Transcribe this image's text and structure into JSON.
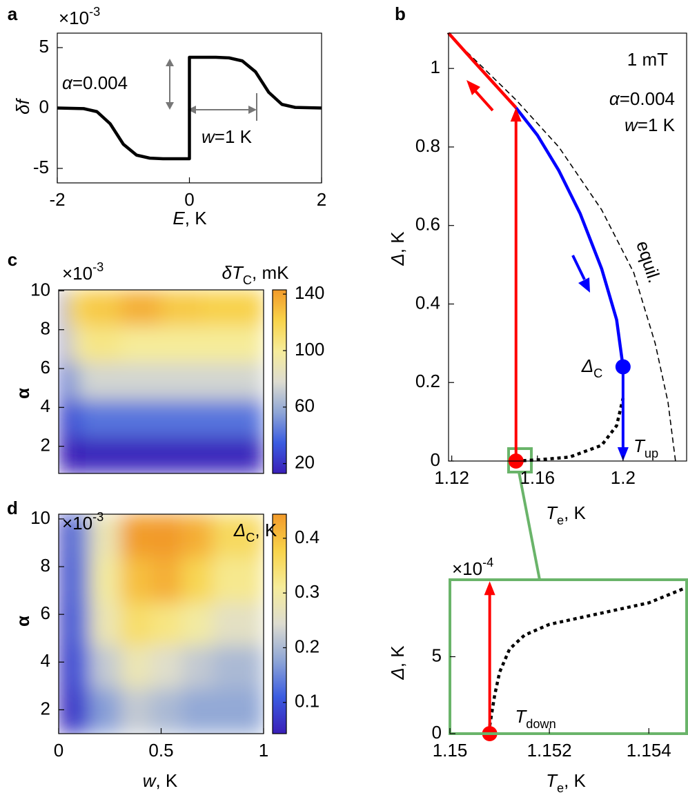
{
  "chart_data": [
    {
      "type": "line",
      "panel": "a",
      "xlabel": {
        "main": "E",
        "rest": ", K"
      },
      "ylabel": {
        "main": "δf"
      },
      "multiplier": {
        "main": "×10",
        "sup": "-3"
      },
      "xlim": [
        -2,
        2
      ],
      "ylim": [
        -6.2,
        6.2
      ],
      "xticks": [
        -2,
        0,
        2
      ],
      "yticks": [
        -5,
        0,
        5
      ],
      "series": [
        {
          "color": "#000000",
          "style": "solid",
          "x": [
            -2,
            -1.6,
            -1.4,
            -1.2,
            -1.0,
            -0.8,
            -0.6,
            -0.4,
            0,
            0,
            0.4,
            0.6,
            0.8,
            1.0,
            1.2,
            1.4,
            1.6,
            2
          ],
          "values": [
            0,
            -0.05,
            -0.3,
            -1.3,
            -3.0,
            -3.9,
            -4.15,
            -4.2,
            -4.2,
            4.2,
            4.2,
            4.15,
            3.9,
            3.0,
            1.3,
            0.3,
            0.05,
            0
          ]
        }
      ],
      "annotations": [
        {
          "main": "α",
          "rest": "=0.004"
        },
        {
          "main": "w",
          "rest": "=1 K"
        }
      ]
    },
    {
      "type": "line",
      "panel": "b",
      "xlabel": {
        "main": "T",
        "sub": "e",
        "rest": ", K"
      },
      "ylabel": {
        "main": "Δ",
        "rest": ", K"
      },
      "xlim": [
        1.1185,
        1.2297
      ],
      "ylim": [
        0,
        1.09
      ],
      "xticks": [
        1.12,
        1.16,
        1.2
      ],
      "yticks": [
        0,
        0.2,
        0.4,
        0.6,
        0.8,
        1
      ],
      "series": [
        {
          "color": "#000000",
          "style": "dashed",
          "x": [
            1.118,
            1.135,
            1.15,
            1.17,
            1.19,
            1.205,
            1.215,
            1.221,
            1.2245
          ],
          "values": [
            1.09,
            1.0,
            0.92,
            0.8,
            0.64,
            0.48,
            0.3,
            0.15,
            0
          ]
        },
        {
          "color": "#ff0000",
          "style": "solid",
          "x": [
            1.1185,
            1.13,
            1.14,
            1.15
          ],
          "values": [
            1.09,
            1.02,
            0.96,
            0.9
          ]
        },
        {
          "color": "#0000ff",
          "style": "solid",
          "x": [
            1.15,
            1.16,
            1.17,
            1.18,
            1.19,
            1.197,
            1.2
          ],
          "values": [
            0.9,
            0.83,
            0.74,
            0.63,
            0.49,
            0.36,
            0.24
          ]
        },
        {
          "color": "#000000",
          "style": "dotted",
          "x": [
            1.15,
            1.16,
            1.175,
            1.19,
            1.197,
            1.2
          ],
          "values": [
            0,
            0.003,
            0.01,
            0.04,
            0.09,
            0.16
          ]
        }
      ],
      "arrows": [
        {
          "x": 1.15,
          "from": 0,
          "to": 0.9,
          "color": "#ff0000"
        },
        {
          "x": 1.2,
          "from": 0.24,
          "to": 0,
          "color": "#0000ff"
        }
      ],
      "points": [
        {
          "x": 1.15,
          "y": 0,
          "color": "#ff0000"
        },
        {
          "x": 1.2,
          "y": 0.24,
          "color": "#0000ff"
        }
      ],
      "annotations": [
        "1 mT",
        {
          "main": "α",
          "rest": "=0.004"
        },
        {
          "main": "w",
          "rest": "=1 K"
        },
        "equil.",
        {
          "main": "Δ",
          "sub": "C",
          "color": "#0000ff"
        },
        {
          "main": "T",
          "sub": "up",
          "color": "#0000ff"
        }
      ]
    },
    {
      "type": "heatmap",
      "panel": "c",
      "ylabel": {
        "main": "α"
      },
      "multiplier": {
        "main": "×10",
        "sup": "-3"
      },
      "colorbar_title": {
        "main": "δT",
        "sub": "C",
        "rest": ", mK"
      },
      "xlim": [
        0,
        1
      ],
      "ylim": [
        0.6,
        10.05
      ],
      "yticks": [
        2,
        4,
        6,
        8,
        10
      ],
      "xbins": [
        0,
        0.03,
        0.1,
        0.3,
        0.5,
        0.7,
        1
      ],
      "ybins": [
        0.6,
        2.5,
        4.4,
        6.3,
        8.2,
        10.05
      ],
      "values": [
        [
          8,
          12,
          15,
          15,
          15,
          15
        ],
        [
          15,
          30,
          42,
          42,
          42,
          42
        ],
        [
          20,
          55,
          75,
          75,
          75,
          75
        ],
        [
          25,
          85,
          105,
          100,
          100,
          100
        ],
        [
          30,
          110,
          125,
          135,
          125,
          122
        ]
      ],
      "clim": [
        13,
        143
      ],
      "cticks": [
        20,
        60,
        100,
        140
      ],
      "colormap": [
        "#3a1fb8",
        "#3b5ce0",
        "#8fa6d6",
        "#dddcd0",
        "#f6ec9a",
        "#f8d34a",
        "#f29a2a"
      ]
    },
    {
      "type": "heatmap",
      "panel": "d",
      "xlabel": {
        "main": "w",
        "rest": ", K"
      },
      "ylabel": {
        "main": "α"
      },
      "multiplier": {
        "main": "×10",
        "sup": "-3"
      },
      "colorbar_title": {
        "main": "Δ",
        "sub": "C",
        "rest": ", K"
      },
      "xlim": [
        0,
        1
      ],
      "ylim": [
        1,
        10.2
      ],
      "xticks": [
        0,
        0.5,
        1
      ],
      "yticks": [
        2,
        4,
        6,
        8,
        10
      ],
      "xbins": [
        0,
        0.05,
        0.15,
        0.3,
        0.45,
        0.6,
        0.75,
        1
      ],
      "ybins": [
        1,
        2.9,
        4.7,
        6.5,
        8.4,
        10.2
      ],
      "values": [
        [
          0.04,
          0.08,
          0.17,
          0.22,
          0.2,
          0.18,
          0.18
        ],
        [
          0.04,
          0.1,
          0.22,
          0.28,
          0.25,
          0.22,
          0.2
        ],
        [
          0.04,
          0.12,
          0.28,
          0.35,
          0.33,
          0.3,
          0.26
        ],
        [
          0.05,
          0.13,
          0.3,
          0.4,
          0.42,
          0.37,
          0.32
        ],
        [
          0.05,
          0.14,
          0.28,
          0.44,
          0.48,
          0.42,
          0.36
        ]
      ],
      "clim": [
        0.043,
        0.444
      ],
      "cticks": [
        0.1,
        0.2,
        0.3,
        0.4
      ],
      "colormap": [
        "#3a1fb8",
        "#3b5ce0",
        "#8fa6d6",
        "#dddcd0",
        "#f6ec9a",
        "#f8d34a",
        "#f29a2a"
      ]
    },
    {
      "type": "line",
      "xlabel": {
        "main": "T",
        "sub": "e",
        "rest": ", K"
      },
      "ylabel": {
        "main": "Δ",
        "rest": ", K"
      },
      "multiplier": {
        "main": "×10",
        "sup": "-4"
      },
      "xlim": [
        1.15,
        1.15476
      ],
      "ylim": [
        0,
        10
      ],
      "xticks": [
        1.15,
        1.152,
        1.154
      ],
      "yticks": [
        0,
        5
      ],
      "series": [
        {
          "color": "#000000",
          "style": "dotted",
          "x": [
            1.1508,
            1.1509,
            1.151,
            1.1512,
            1.1515,
            1.152,
            1.153,
            1.154,
            1.15476
          ],
          "values": [
            0.5,
            2.5,
            4.0,
            5.5,
            6.4,
            7.1,
            7.8,
            8.5,
            9.5
          ]
        }
      ],
      "arrows": [
        {
          "x": 1.1508,
          "from": 0,
          "to": 9.9,
          "color": "#ff0000"
        }
      ],
      "points": [
        {
          "x": 1.1508,
          "y": 0,
          "color": "#ff0000"
        }
      ],
      "annotations": [
        {
          "main": "T",
          "sub": "down",
          "color": "#ff0000"
        }
      ]
    }
  ]
}
